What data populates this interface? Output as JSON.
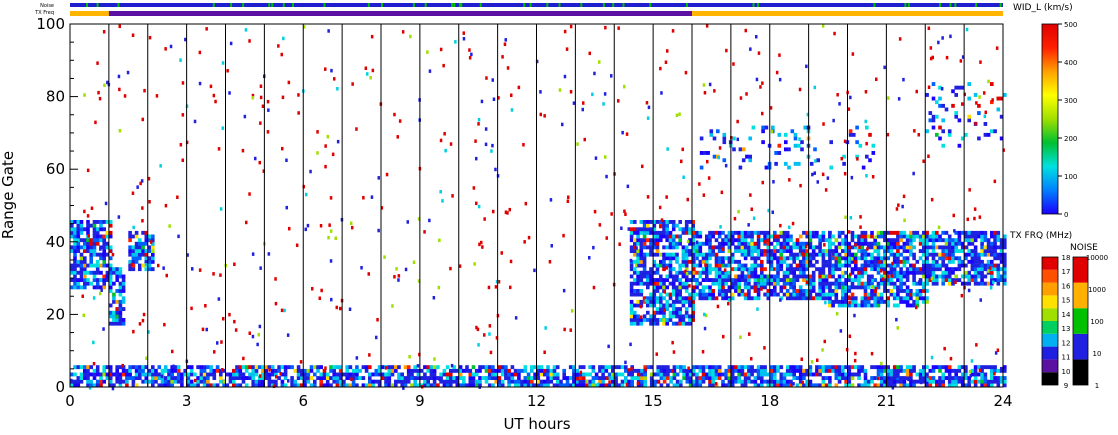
{
  "chart_data": {
    "type": "heatmap",
    "title": "",
    "xlabel": "UT hours",
    "ylabel": "Range Gate",
    "xlim": [
      0,
      24
    ],
    "ylim": [
      0,
      100
    ],
    "x_ticks": [
      "0",
      "3",
      "6",
      "9",
      "12",
      "15",
      "18",
      "21",
      "24"
    ],
    "y_ticks": [
      "0",
      "20",
      "40",
      "60",
      "80",
      "100"
    ],
    "scan_boundaries_ut": [
      1,
      2,
      3,
      4,
      5,
      6,
      7,
      8,
      9,
      10,
      11,
      12,
      13,
      14,
      15,
      16,
      17,
      18,
      19,
      20,
      21,
      22,
      23
    ],
    "strips": {
      "noise_label": "Noise",
      "txfreq_label": "TX Freq",
      "noise_color": "#1f1fd0",
      "txfreq_segments": [
        {
          "from": 0,
          "to": 1,
          "color": "#ffb400"
        },
        {
          "from": 1,
          "to": 16,
          "color": "#5a10a0"
        },
        {
          "from": 16,
          "to": 24,
          "color": "#ffb400"
        }
      ]
    },
    "echo_regions": [
      {
        "ut": [
          0,
          1.05
        ],
        "gates": [
          27,
          46
        ],
        "value": "low"
      },
      {
        "ut": [
          1,
          1.4
        ],
        "gates": [
          17,
          33
        ],
        "value": "low"
      },
      {
        "ut": [
          1.5,
          2.1
        ],
        "gates": [
          32,
          43
        ],
        "value": "low"
      },
      {
        "ut": [
          14.4,
          16.0
        ],
        "gates": [
          17,
          46
        ],
        "value": "low"
      },
      {
        "ut": [
          16.0,
          19.5
        ],
        "gates": [
          24,
          43
        ],
        "value": "low"
      },
      {
        "ut": [
          19.5,
          22.0
        ],
        "gates": [
          22,
          43
        ],
        "value": "low"
      },
      {
        "ut": [
          22.0,
          24.0
        ],
        "gates": [
          28,
          43
        ],
        "value": "low"
      },
      {
        "ut": [
          0,
          24
        ],
        "gates": [
          0,
          6
        ],
        "value": "low"
      },
      {
        "ut": [
          16.2,
          21.0
        ],
        "gates": [
          60,
          72
        ],
        "value": "sparse"
      },
      {
        "ut": [
          22.0,
          24.0
        ],
        "gates": [
          66,
          84
        ],
        "value": "sparse"
      }
    ],
    "colorbars": [
      {
        "label": "WID_L (km/s)",
        "range": [
          0,
          500
        ],
        "ticks": [
          "0",
          "100",
          "200",
          "300",
          "400",
          "500"
        ],
        "stops": [
          "#1a00ff",
          "#0080ff",
          "#00e0e0",
          "#00c030",
          "#a0e000",
          "#ffff00",
          "#ffa000",
          "#ff2000",
          "#e00000"
        ]
      },
      {
        "label": "TX FRQ (MHz)",
        "ticks": [
          "9",
          "10",
          "11",
          "12",
          "13",
          "14",
          "15",
          "16",
          "17",
          "18"
        ],
        "colors": [
          "#000000",
          "#5a10a0",
          "#2020e0",
          "#00b0f0",
          "#00d060",
          "#a0e000",
          "#ffe000",
          "#ffa000",
          "#ff5000",
          "#e00000"
        ]
      },
      {
        "label": "NOISE",
        "ticks": [
          "1",
          "10",
          "100",
          "1000",
          "10000"
        ],
        "colors": [
          "#000000",
          "#2020e0",
          "#00c000",
          "#ffb000",
          "#e00000"
        ]
      }
    ]
  }
}
